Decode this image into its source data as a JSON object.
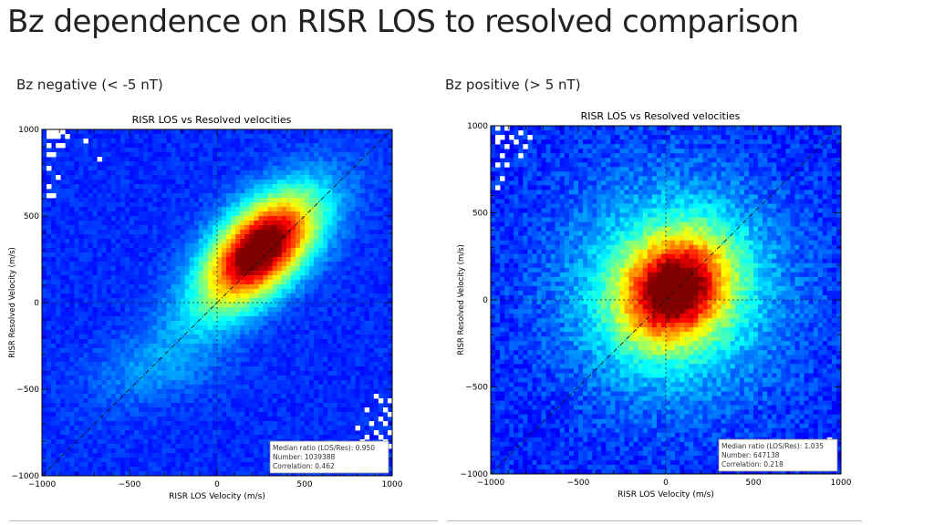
{
  "slide": {
    "title": "Bz dependence on RISR LOS to resolved comparison",
    "left_caption": "Bz negative (< -5 nT)",
    "right_caption": "Bz positive (> 5 nT)"
  },
  "chart_data": [
    {
      "type": "heatmap",
      "title": "RISR LOS vs Resolved velocities",
      "xlabel": "RISR LOS Velocity (m/s)",
      "ylabel": "RISR Resolved Velocity (m/s)",
      "xlim": [
        -1000,
        1000
      ],
      "ylim": [
        -1000,
        1000
      ],
      "xticks": [
        -1000,
        -500,
        0,
        500,
        1000
      ],
      "yticks": [
        -1000,
        -500,
        0,
        500,
        1000
      ],
      "tick_labels_x": [
        "−1000",
        "−500",
        "0",
        "500",
        "1000"
      ],
      "tick_labels_y": [
        "1000",
        "500",
        "0",
        "−500",
        "−1000"
      ],
      "density_peak": {
        "x": 250,
        "y": 320
      },
      "reference_lines": [
        "y = x diagonal",
        "x = 0 dashed",
        "y = 0 dashed"
      ],
      "colormap": [
        "#00008f",
        "#0000ff",
        "#00ffff",
        "#ffff00",
        "#ff0000",
        "#8f0000"
      ],
      "stats_box": {
        "lines": [
          "Median ratio (LOS/Res): 0.950",
          "Number: 1039388",
          "Correlation: 0.462"
        ],
        "median_ratio": 0.95,
        "number": 1039388,
        "correlation": 0.462
      }
    },
    {
      "type": "heatmap",
      "title": "RISR LOS vs Resolved velocities",
      "xlabel": "RISR LOS Velocity (m/s)",
      "ylabel": "RISR Resolved Velocity (m/s)",
      "xlim": [
        -1000,
        1000
      ],
      "ylim": [
        -1000,
        1000
      ],
      "xticks": [
        -1000,
        -500,
        0,
        500,
        1000
      ],
      "yticks": [
        -1000,
        -500,
        0,
        500,
        1000
      ],
      "tick_labels_x": [
        "−1000",
        "−500",
        "0",
        "500",
        "1000"
      ],
      "tick_labels_y": [
        "1000",
        "500",
        "0",
        "−500",
        "−1000"
      ],
      "density_peak": {
        "x": 50,
        "y": 60
      },
      "reference_lines": [
        "y = x diagonal",
        "x = 0 dashed",
        "y = 0 dashed"
      ],
      "colormap": [
        "#00008f",
        "#0000ff",
        "#00ffff",
        "#ffff00",
        "#ff0000",
        "#8f0000"
      ],
      "stats_box": {
        "lines": [
          "Median ratio (LOS/Res): 1.035",
          "Number: 647138",
          "Correlation: 0.218"
        ],
        "median_ratio": 1.035,
        "number": 647138,
        "correlation": 0.218
      }
    }
  ]
}
